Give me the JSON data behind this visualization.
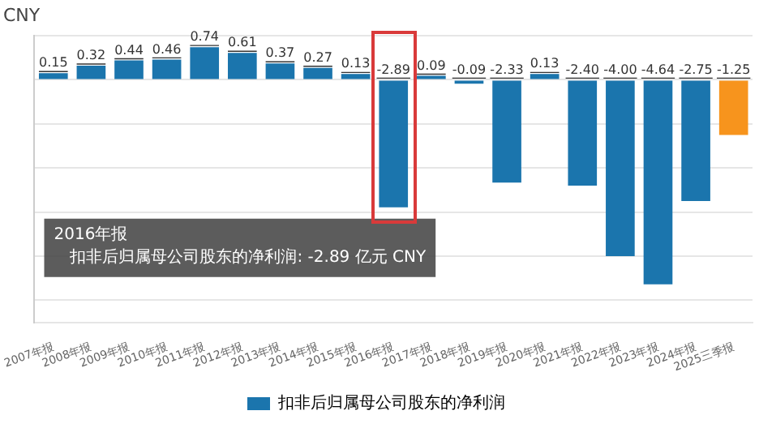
{
  "chart_data": {
    "type": "bar",
    "title": "CNY",
    "categories": [
      "2007年报",
      "2008年报",
      "2009年报",
      "2010年报",
      "2011年报",
      "2012年报",
      "2013年报",
      "2014年报",
      "2015年报",
      "2016年报",
      "2017年报",
      "2018年报",
      "2019年报",
      "2020年报",
      "2021年报",
      "2022年报",
      "2023年报",
      "2024年报",
      "2025三季报"
    ],
    "series": [
      {
        "name": "扣非后归属母公司股东的净利润",
        "color": "#1b75ad",
        "colors": [
          "#1b75ad",
          "#1b75ad",
          "#1b75ad",
          "#1b75ad",
          "#1b75ad",
          "#1b75ad",
          "#1b75ad",
          "#1b75ad",
          "#1b75ad",
          "#1b75ad",
          "#1b75ad",
          "#1b75ad",
          "#1b75ad",
          "#1b75ad",
          "#1b75ad",
          "#1b75ad",
          "#1b75ad",
          "#1b75ad",
          "#f7941d"
        ],
        "values": [
          0.15,
          0.32,
          0.44,
          0.46,
          0.74,
          0.61,
          0.37,
          0.27,
          0.13,
          -2.89,
          0.09,
          -0.09,
          -2.33,
          0.13,
          -2.4,
          -4.0,
          -4.64,
          -2.75,
          -1.25
        ],
        "value_labels": [
          "0.15",
          "0.32",
          "0.44",
          "0.46",
          "0.74",
          "0.61",
          "0.37",
          "0.27",
          "0.13",
          "-2.89",
          "0.09",
          "-0.09",
          "-2.33",
          "0.13",
          "-2.40",
          "-4.00",
          "-4.64",
          "-2.75",
          "-1.25"
        ]
      }
    ],
    "ylim": [
      -5.5,
      1
    ],
    "yticks": [
      {
        "value": -5,
        "label": null
      },
      {
        "value": -4,
        "label": null
      },
      {
        "value": -3,
        "label": null
      },
      {
        "value": -2,
        "label": null
      },
      {
        "value": -1,
        "label": null
      },
      {
        "value": 0,
        "label": null
      },
      {
        "value": 1,
        "label": null
      }
    ],
    "tick_labels": "x",
    "grid": "y",
    "legend": "bottom",
    "annotations": [
      "2016年报",
      "扣非后归属母公司股东的净利润: -2.89 亿元 CNY"
    ]
  }
}
